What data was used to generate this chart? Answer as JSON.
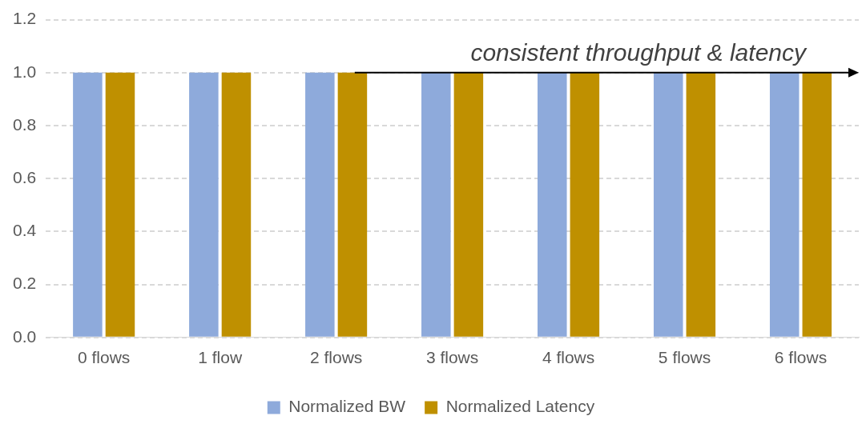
{
  "chart_data": {
    "type": "bar",
    "categories": [
      "0 flows",
      "1 flow",
      "2 flows",
      "3 flows",
      "4 flows",
      "5 flows",
      "6 flows"
    ],
    "series": [
      {
        "name": "Normalized BW",
        "color": "#8eaadb",
        "values": [
          1.0,
          1.0,
          1.0,
          1.0,
          1.0,
          1.0,
          1.0
        ]
      },
      {
        "name": "Normalized Latency",
        "color": "#bf9000",
        "values": [
          1.0,
          1.0,
          1.0,
          1.0,
          1.0,
          1.0,
          1.0
        ]
      }
    ],
    "ylim": [
      0,
      1.2
    ],
    "yticks": [
      {
        "value": 0,
        "label": "0.0"
      },
      {
        "value": 0.2,
        "label": "0.2"
      },
      {
        "value": 0.4,
        "label": "0.4"
      },
      {
        "value": 0.6,
        "label": "0.6"
      },
      {
        "value": 0.8,
        "label": "0.8"
      },
      {
        "value": 1,
        "label": "1.0"
      },
      {
        "value": 1.2,
        "label": "1.2"
      }
    ],
    "grid": "y",
    "legend": "bottom",
    "annotations": [
      "consistent throughput & latency"
    ]
  }
}
